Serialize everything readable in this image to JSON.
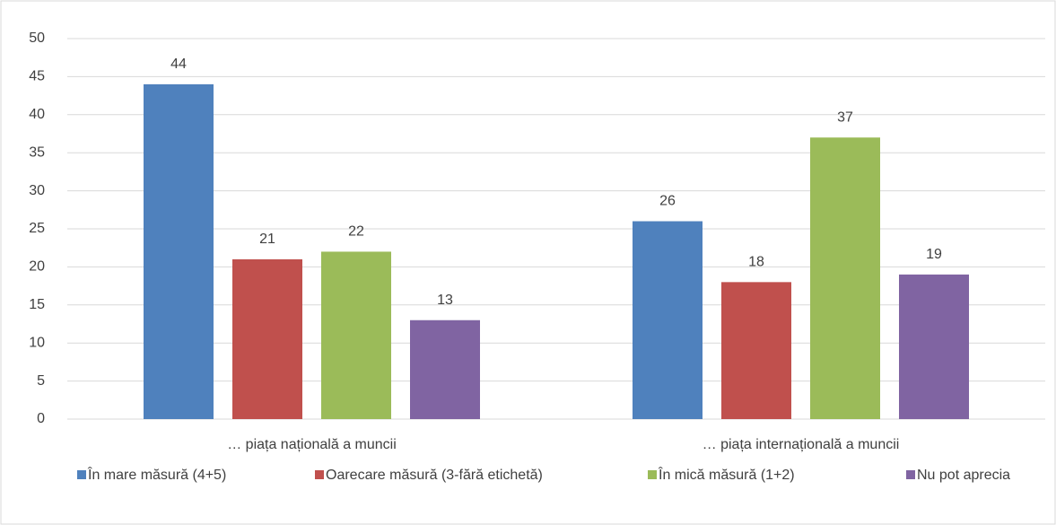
{
  "chart_data": {
    "type": "bar",
    "categories": [
      "… piața națională a muncii",
      "… piața internațională a muncii"
    ],
    "series": [
      {
        "name": "În mare măsură (4+5)",
        "color": "#4f81bd",
        "values": [
          44,
          26
        ]
      },
      {
        "name": "Oarecare măsură (3-fără etichetă)",
        "color": "#c0504d",
        "values": [
          21,
          18
        ]
      },
      {
        "name": "În mică măsură (1+2)",
        "color": "#9bbb59",
        "values": [
          22,
          37
        ]
      },
      {
        "name": "Nu pot aprecia",
        "color": "#8064a2",
        "values": [
          13,
          19
        ]
      }
    ],
    "ylim": [
      0,
      50
    ],
    "yticks": [
      0,
      5,
      10,
      15,
      20,
      25,
      30,
      35,
      40,
      45,
      50
    ],
    "grid": true,
    "legend": "bottom"
  }
}
